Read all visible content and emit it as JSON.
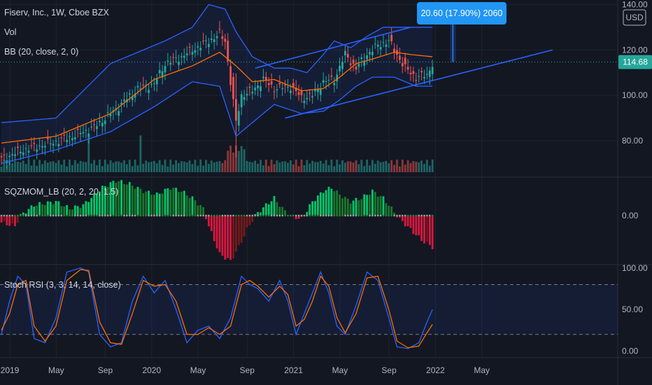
{
  "legend": {
    "symbol": "Fiserv, Inc., 1W, Cboe BZX",
    "vol": "Vol",
    "bb": "BB (20, close, 2, 0)",
    "sqz": "SQZMOM_LB (20, 2, 20, 1.5)",
    "stoch": "Stoch RSI (3, 3, 14, 14, close)"
  },
  "currency": "USD",
  "price_tag": "114.68",
  "measure_label": "20.60 (17.90%) 2060",
  "chart_data": [
    {
      "type": "candlestick",
      "panel": "price",
      "y_ticks": [
        "140.00",
        "120.00",
        "100.00",
        "80.00"
      ],
      "ylim": [
        64,
        142
      ],
      "last_price": 114.68,
      "x_ticks": [
        "2019",
        "May",
        "Sep",
        "2020",
        "May",
        "Sep",
        "2021",
        "May",
        "Sep",
        "2022",
        "May"
      ],
      "close_path": [
        [
          0,
          72
        ],
        [
          8,
          76
        ],
        [
          18,
          79
        ],
        [
          26,
          82
        ],
        [
          34,
          86
        ],
        [
          42,
          94
        ],
        [
          50,
          103
        ],
        [
          56,
          105
        ],
        [
          60,
          114
        ],
        [
          66,
          117
        ],
        [
          70,
          120
        ],
        [
          76,
          124
        ],
        [
          80,
          127
        ],
        [
          82,
          124
        ],
        [
          84,
          106
        ],
        [
          86,
          88
        ],
        [
          88,
          100
        ],
        [
          92,
          102
        ],
        [
          96,
          107
        ],
        [
          100,
          103
        ],
        [
          106,
          104
        ],
        [
          110,
          99
        ],
        [
          114,
          100
        ],
        [
          118,
          106
        ],
        [
          122,
          107
        ],
        [
          126,
          118
        ],
        [
          130,
          112
        ],
        [
          134,
          118
        ],
        [
          138,
          122
        ],
        [
          142,
          124
        ],
        [
          144,
          120
        ],
        [
          148,
          112
        ],
        [
          152,
          108
        ],
        [
          156,
          109
        ],
        [
          158,
          114
        ]
      ],
      "bollinger": {
        "upper": [
          [
            0,
            88
          ],
          [
            20,
            90
          ],
          [
            40,
            114
          ],
          [
            60,
            124
          ],
          [
            70,
            130
          ],
          [
            76,
            140
          ],
          [
            82,
            138
          ],
          [
            86,
            128
          ],
          [
            92,
            117
          ],
          [
            100,
            112
          ],
          [
            106,
            112
          ],
          [
            112,
            110
          ],
          [
            118,
            118
          ],
          [
            122,
            124
          ],
          [
            128,
            121
          ],
          [
            134,
            126
          ],
          [
            140,
            130
          ],
          [
            148,
            130
          ],
          [
            158,
            130
          ]
        ],
        "middle": [
          [
            0,
            79
          ],
          [
            20,
            82
          ],
          [
            40,
            92
          ],
          [
            56,
            107
          ],
          [
            70,
            113
          ],
          [
            80,
            119
          ],
          [
            86,
            113
          ],
          [
            92,
            106
          ],
          [
            100,
            107
          ],
          [
            110,
            102
          ],
          [
            118,
            103
          ],
          [
            124,
            108
          ],
          [
            130,
            114
          ],
          [
            136,
            116
          ],
          [
            144,
            119
          ],
          [
            150,
            118
          ],
          [
            158,
            117
          ]
        ],
        "lower": [
          [
            0,
            70
          ],
          [
            20,
            76
          ],
          [
            40,
            84
          ],
          [
            56,
            95
          ],
          [
            70,
            106
          ],
          [
            80,
            104
          ],
          [
            86,
            82
          ],
          [
            92,
            88
          ],
          [
            100,
            96
          ],
          [
            110,
            92
          ],
          [
            118,
            93
          ],
          [
            124,
            98
          ],
          [
            130,
            104
          ],
          [
            136,
            108
          ],
          [
            144,
            108
          ],
          [
            152,
            104
          ],
          [
            158,
            104
          ]
        ]
      },
      "channel": {
        "upper": [
          [
            93,
            112
          ],
          [
            150,
            130
          ]
        ],
        "lower": [
          [
            104,
            90
          ],
          [
            202,
            120
          ]
        ]
      },
      "measure": {
        "from": 114.68,
        "to": 135.28,
        "change": 20.6,
        "percent": 17.9,
        "bars": 2060
      }
    },
    {
      "type": "bar",
      "panel": "squeeze-momentum",
      "y_ticks": [
        "0.00"
      ],
      "ylim": [
        -14,
        11
      ],
      "values_path": [
        [
          0,
          -2
        ],
        [
          5,
          -3
        ],
        [
          7,
          0
        ],
        [
          12,
          3
        ],
        [
          20,
          4
        ],
        [
          25,
          2
        ],
        [
          30,
          3
        ],
        [
          37,
          8
        ],
        [
          42,
          10
        ],
        [
          47,
          9
        ],
        [
          52,
          7
        ],
        [
          57,
          6
        ],
        [
          62,
          8
        ],
        [
          66,
          7
        ],
        [
          70,
          5
        ],
        [
          74,
          2
        ],
        [
          76,
          -3
        ],
        [
          80,
          -11
        ],
        [
          84,
          -13
        ],
        [
          87,
          -9
        ],
        [
          90,
          -4
        ],
        [
          93,
          0
        ],
        [
          97,
          3
        ],
        [
          100,
          5
        ],
        [
          103,
          2
        ],
        [
          106,
          0
        ],
        [
          110,
          -1
        ],
        [
          114,
          4
        ],
        [
          118,
          7
        ],
        [
          121,
          8
        ],
        [
          124,
          6
        ],
        [
          128,
          4
        ],
        [
          132,
          5
        ],
        [
          136,
          7
        ],
        [
          140,
          5
        ],
        [
          143,
          2
        ],
        [
          146,
          -1
        ],
        [
          150,
          -4
        ],
        [
          154,
          -7
        ],
        [
          158,
          -9
        ]
      ]
    },
    {
      "type": "line",
      "panel": "stoch-rsi",
      "y_ticks": [
        "100.00",
        "50.00",
        "0.00"
      ],
      "ylim": [
        -8,
        104
      ],
      "bands": [
        80,
        20
      ],
      "series": [
        {
          "values": [
            [
              0,
              20
            ],
            [
              3,
              60
            ],
            [
              6,
              90
            ],
            [
              9,
              80
            ],
            [
              12,
              15
            ],
            [
              16,
              10
            ],
            [
              20,
              40
            ],
            [
              24,
              95
            ],
            [
              29,
              100
            ],
            [
              32,
              95
            ],
            [
              36,
              20
            ],
            [
              40,
              5
            ],
            [
              44,
              10
            ],
            [
              48,
              60
            ],
            [
              52,
              90
            ],
            [
              56,
              70
            ],
            [
              60,
              85
            ],
            [
              64,
              50
            ],
            [
              68,
              10
            ],
            [
              72,
              25
            ],
            [
              76,
              30
            ],
            [
              80,
              15
            ],
            [
              84,
              40
            ],
            [
              88,
              90
            ],
            [
              91,
              80
            ],
            [
              94,
              75
            ],
            [
              98,
              60
            ],
            [
              102,
              85
            ],
            [
              105,
              60
            ],
            [
              108,
              20
            ],
            [
              111,
              45
            ],
            [
              114,
              70
            ],
            [
              117,
              95
            ],
            [
              120,
              70
            ],
            [
              123,
              30
            ],
            [
              126,
              20
            ],
            [
              130,
              55
            ],
            [
              134,
              95
            ],
            [
              138,
              85
            ],
            [
              142,
              40
            ],
            [
              145,
              5
            ],
            [
              149,
              3
            ],
            [
              153,
              10
            ],
            [
              156,
              35
            ],
            [
              158,
              50
            ]
          ]
        },
        {
          "values": [
            [
              0,
              25
            ],
            [
              3,
              45
            ],
            [
              6,
              80
            ],
            [
              9,
              85
            ],
            [
              12,
              30
            ],
            [
              16,
              12
            ],
            [
              20,
              30
            ],
            [
              24,
              85
            ],
            [
              29,
              98
            ],
            [
              32,
              97
            ],
            [
              36,
              35
            ],
            [
              40,
              10
            ],
            [
              44,
              8
            ],
            [
              48,
              45
            ],
            [
              52,
              85
            ],
            [
              56,
              78
            ],
            [
              60,
              80
            ],
            [
              64,
              60
            ],
            [
              68,
              20
            ],
            [
              72,
              20
            ],
            [
              76,
              28
            ],
            [
              80,
              20
            ],
            [
              84,
              30
            ],
            [
              88,
              80
            ],
            [
              91,
              85
            ],
            [
              94,
              78
            ],
            [
              98,
              65
            ],
            [
              102,
              78
            ],
            [
              105,
              68
            ],
            [
              108,
              30
            ],
            [
              111,
              38
            ],
            [
              114,
              60
            ],
            [
              117,
              90
            ],
            [
              120,
              78
            ],
            [
              123,
              40
            ],
            [
              126,
              22
            ],
            [
              130,
              45
            ],
            [
              134,
              88
            ],
            [
              138,
              90
            ],
            [
              142,
              50
            ],
            [
              145,
              12
            ],
            [
              149,
              4
            ],
            [
              153,
              6
            ],
            [
              156,
              22
            ],
            [
              158,
              32
            ]
          ]
        }
      ]
    }
  ]
}
